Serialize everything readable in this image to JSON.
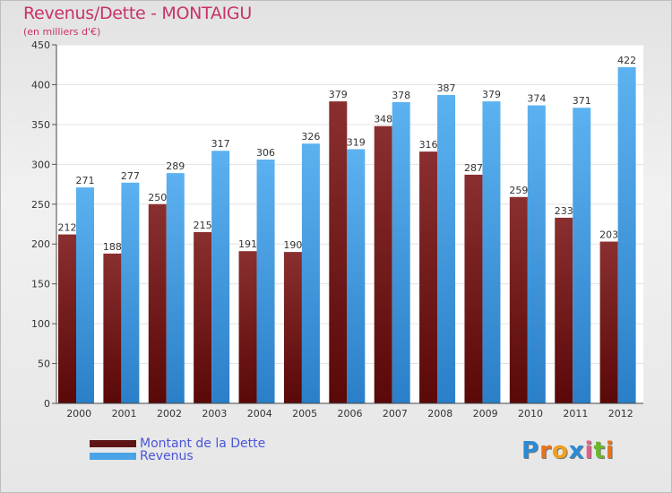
{
  "title": "Revenus/Dette - MONTAIGU",
  "subtitle": "(en milliers d'€)",
  "logo": {
    "text": "Proxiti",
    "letters": [
      "P",
      "r",
      "o",
      "x",
      "i",
      "t",
      "i"
    ],
    "colors": [
      "#2a8bd6",
      "#e8731c",
      "#f0a020",
      "#2a8bd6",
      "#e85c8c",
      "#6ab82c",
      "#e8731c"
    ]
  },
  "colors": {
    "dette": "#7a1e1e",
    "revenus": "#4aa3e6",
    "title": "#c8326a",
    "legend_text": "#4a55d8"
  },
  "chart_data": {
    "type": "bar",
    "title": "Revenus/Dette - MONTAIGU",
    "subtitle": "(en milliers d'€)",
    "categories": [
      "2000",
      "2001",
      "2002",
      "2003",
      "2004",
      "2005",
      "2006",
      "2007",
      "2008",
      "2009",
      "2010",
      "2011",
      "2012"
    ],
    "series": [
      {
        "name": "Montant de la Dette",
        "values": [
          212,
          188,
          250,
          215,
          191,
          190,
          379,
          348,
          316,
          287,
          259,
          233,
          203
        ]
      },
      {
        "name": "Revenus",
        "values": [
          271,
          277,
          289,
          317,
          306,
          326,
          319,
          378,
          387,
          379,
          374,
          371,
          422
        ]
      }
    ],
    "ylim": [
      0,
      450
    ],
    "yticks": [
      0,
      50,
      100,
      150,
      200,
      250,
      300,
      350,
      400,
      450
    ],
    "grid": true,
    "legend": "bottom-left"
  }
}
